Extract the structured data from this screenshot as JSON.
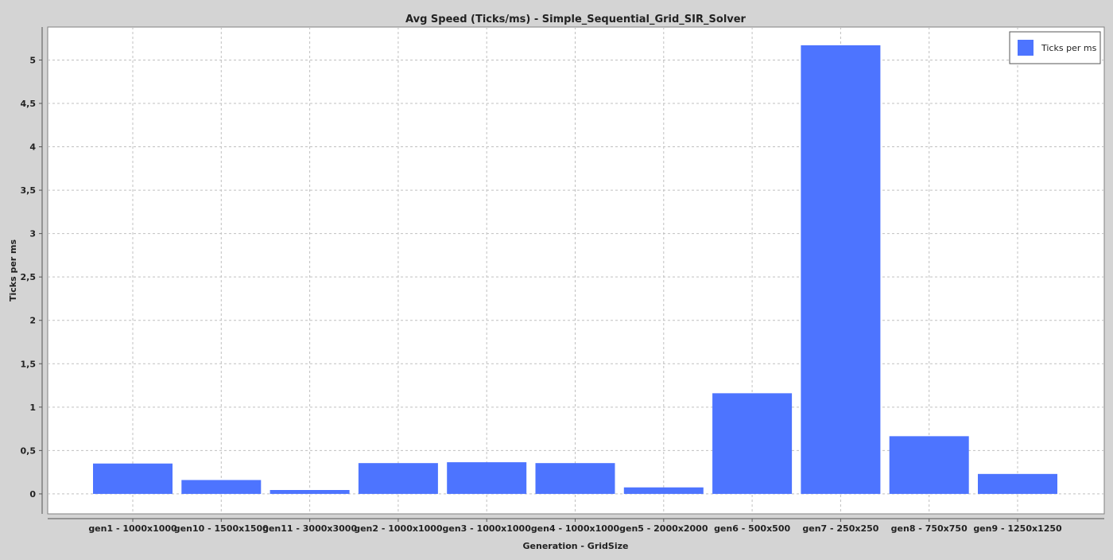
{
  "chart_data": {
    "type": "bar",
    "title": "Avg Speed (Ticks/ms) - Simple_Sequential_Grid_SIR_Solver",
    "xlabel": "Generation - GridSize",
    "ylabel": "Ticks per ms",
    "categories": [
      "gen1 - 1000x1000",
      "gen10 - 1500x1500",
      "gen11 - 3000x3000",
      "gen2 - 1000x1000",
      "gen3 - 1000x1000",
      "gen4 - 1000x1000",
      "gen5 - 2000x2000",
      "gen6 - 500x500",
      "gen7 - 250x250",
      "gen8 - 750x750",
      "gen9 - 1250x1250"
    ],
    "series": [
      {
        "name": "Ticks per ms",
        "color": "#4d74ff",
        "values": [
          0.35,
          0.16,
          0.045,
          0.355,
          0.365,
          0.355,
          0.075,
          1.16,
          5.17,
          0.665,
          0.23
        ]
      }
    ],
    "ylim": [
      -0.23,
      5.38
    ],
    "yticks": [
      "0",
      "0,5",
      "1",
      "1,5",
      "2",
      "2,5",
      "3",
      "3,5",
      "4",
      "4,5",
      "5"
    ],
    "ytick_values": [
      0,
      0.5,
      1,
      1.5,
      2,
      2.5,
      3,
      3.5,
      4,
      4.5,
      5
    ],
    "grid": true,
    "legend_position": "top-right"
  }
}
